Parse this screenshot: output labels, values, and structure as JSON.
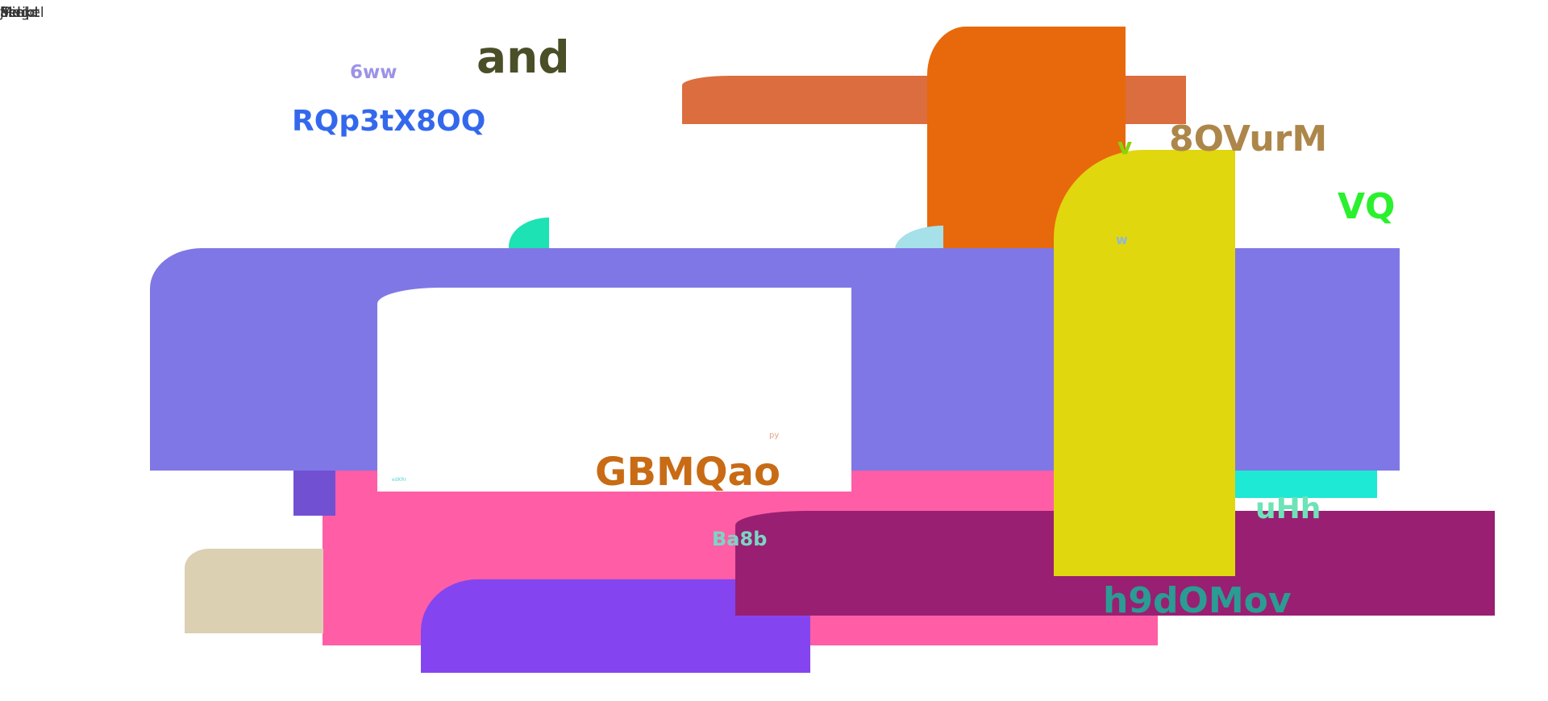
{
  "corner_labels": [
    "jPdgd",
    "Minkel",
    "field",
    "Script",
    "ble",
    "ase"
  ],
  "texts": {
    "and": "and",
    "six_ww": "6ww",
    "rqp": "RQp3tX8OQ",
    "eight_ov": "8OVurM",
    "v": "v",
    "vq": "VQ",
    "w": "w",
    "py": "py",
    "gbm": "GBMQao",
    "tiny": "edKRr",
    "ba8b": "Ba8b",
    "uhh": "uHh",
    "h9d": "h9dOMov"
  },
  "colors": {
    "background": "#ffffff",
    "periwinkle": "#8077e6",
    "orange": "#e8690b",
    "yellow": "#e0d70f",
    "pink": "#ff5ea6",
    "magenta": "#991f72",
    "purple": "#8445f0",
    "teal": "#1de2b4"
  }
}
